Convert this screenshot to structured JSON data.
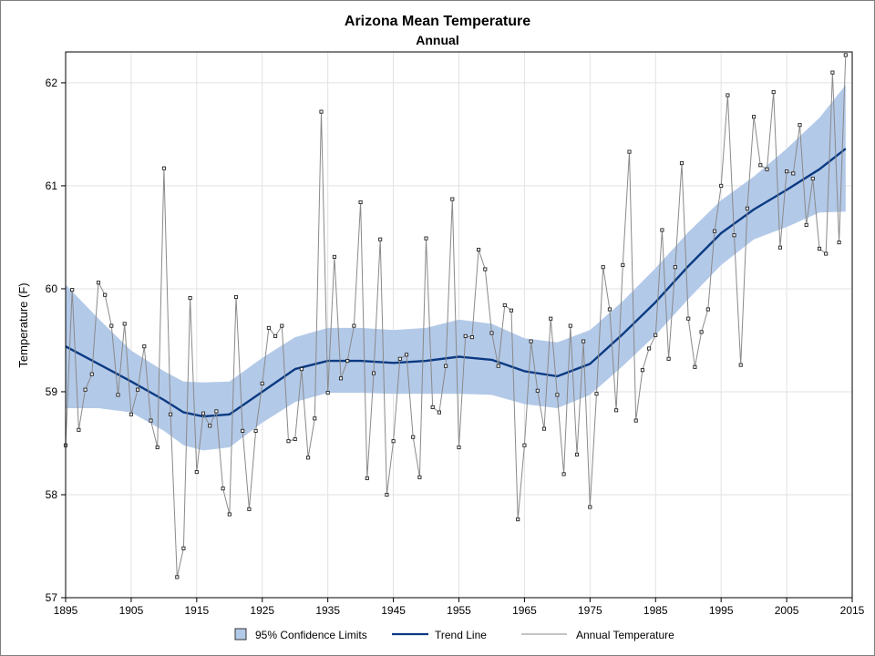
{
  "chart_data": {
    "type": "line",
    "title": "Arizona Mean Temperature",
    "subtitle": "Annual",
    "xlabel": "",
    "ylabel": "Temperature (F)",
    "xlim": [
      1895,
      2015
    ],
    "ylim": [
      57,
      62.3
    ],
    "x_ticks": [
      1895,
      1905,
      1915,
      1925,
      1935,
      1945,
      1955,
      1965,
      1975,
      1985,
      1995,
      2005,
      2015
    ],
    "y_ticks": [
      57,
      58,
      59,
      60,
      61,
      62
    ],
    "grid": true,
    "legend": {
      "position": "bottom",
      "entries": [
        "95% Confidence Limits",
        "Trend Line",
        "Annual Temperature"
      ]
    },
    "colors": {
      "band": "#b3c9e8",
      "trend": "#0b3a82",
      "annual": "#8a8a8a",
      "marker": "#222222",
      "grid": "#e2e2e2"
    },
    "annual_temperature": {
      "x": [
        1895,
        1896,
        1897,
        1898,
        1899,
        1900,
        1901,
        1902,
        1903,
        1904,
        1905,
        1906,
        1907,
        1908,
        1909,
        1910,
        1911,
        1912,
        1913,
        1914,
        1915,
        1916,
        1917,
        1918,
        1919,
        1920,
        1921,
        1922,
        1923,
        1924,
        1925,
        1926,
        1927,
        1928,
        1929,
        1930,
        1931,
        1932,
        1933,
        1934,
        1935,
        1936,
        1937,
        1938,
        1939,
        1940,
        1941,
        1942,
        1943,
        1944,
        1945,
        1946,
        1947,
        1948,
        1949,
        1950,
        1951,
        1952,
        1953,
        1954,
        1955,
        1956,
        1957,
        1958,
        1959,
        1960,
        1961,
        1962,
        1963,
        1964,
        1965,
        1966,
        1967,
        1968,
        1969,
        1970,
        1971,
        1972,
        1973,
        1974,
        1975,
        1976,
        1977,
        1978,
        1979,
        1980,
        1981,
        1982,
        1983,
        1984,
        1985,
        1986,
        1987,
        1988,
        1989,
        1990,
        1991,
        1992,
        1993,
        1994,
        1995,
        1996,
        1997,
        1998,
        1999,
        2000,
        2001,
        2002,
        2003,
        2004,
        2005,
        2006,
        2007,
        2008,
        2009,
        2010,
        2011,
        2012,
        2013,
        2014
      ],
      "y": [
        58.48,
        59.99,
        58.63,
        59.02,
        59.17,
        60.06,
        59.94,
        59.64,
        58.97,
        59.66,
        58.78,
        59.02,
        59.44,
        58.72,
        58.46,
        61.17,
        58.78,
        57.2,
        57.48,
        59.91,
        58.22,
        58.79,
        58.67,
        58.81,
        58.06,
        57.81,
        59.92,
        58.62,
        57.86,
        58.62,
        59.08,
        59.62,
        59.54,
        59.64,
        58.52,
        58.54,
        59.22,
        58.36,
        58.74,
        61.72,
        58.99,
        60.31,
        59.13,
        59.3,
        59.64,
        60.84,
        58.16,
        59.18,
        60.48,
        58.0,
        58.52,
        59.32,
        59.36,
        58.56,
        58.17,
        60.49,
        58.85,
        58.8,
        59.25,
        60.87,
        58.46,
        59.54,
        59.53,
        60.38,
        60.19,
        59.57,
        59.25,
        59.84,
        59.79,
        57.76,
        58.48,
        59.49,
        59.01,
        58.64,
        59.71,
        58.97,
        58.2,
        59.64,
        58.39,
        59.49,
        57.88,
        58.98,
        60.21,
        59.8,
        58.82,
        60.23,
        61.33,
        58.72,
        59.21,
        59.42,
        59.55,
        60.57,
        59.32,
        60.21,
        61.22,
        59.71,
        59.24,
        59.58,
        59.8,
        60.56,
        61.0,
        61.88,
        60.52,
        59.26,
        60.78,
        61.67,
        61.2,
        61.16,
        61.91,
        60.4,
        61.14,
        61.12,
        61.59,
        60.62,
        61.07,
        60.39,
        60.34,
        62.1,
        60.45,
        62.27
      ]
    },
    "trend_line": {
      "x": [
        1895,
        1900,
        1905,
        1910,
        1913,
        1916,
        1920,
        1925,
        1930,
        1935,
        1940,
        1945,
        1950,
        1955,
        1960,
        1965,
        1970,
        1975,
        1980,
        1985,
        1990,
        1995,
        2000,
        2005,
        2010,
        2014
      ],
      "y": [
        59.44,
        59.27,
        59.1,
        58.92,
        58.8,
        58.76,
        58.78,
        59.0,
        59.22,
        59.3,
        59.3,
        59.28,
        59.3,
        59.34,
        59.31,
        59.2,
        59.15,
        59.27,
        59.56,
        59.87,
        60.22,
        60.54,
        60.77,
        60.96,
        61.16,
        61.36
      ]
    },
    "confidence_band": {
      "x": [
        1895,
        1900,
        1905,
        1910,
        1913,
        1916,
        1920,
        1925,
        1930,
        1935,
        1940,
        1945,
        1950,
        1955,
        1960,
        1965,
        1970,
        1975,
        1980,
        1985,
        1990,
        1995,
        2000,
        2005,
        2010,
        2014
      ],
      "lower": [
        58.84,
        58.84,
        58.8,
        58.62,
        58.48,
        58.43,
        58.46,
        58.7,
        58.9,
        58.99,
        58.99,
        58.98,
        58.98,
        58.98,
        58.97,
        58.88,
        58.84,
        58.97,
        59.25,
        59.55,
        59.9,
        60.23,
        60.48,
        60.6,
        60.74,
        60.75
      ],
      "upper": [
        60.04,
        59.71,
        59.4,
        59.2,
        59.1,
        59.09,
        59.1,
        59.33,
        59.53,
        59.62,
        59.62,
        59.6,
        59.62,
        59.7,
        59.66,
        59.52,
        59.48,
        59.6,
        59.88,
        60.2,
        60.55,
        60.86,
        61.09,
        61.36,
        61.66,
        61.98
      ]
    }
  }
}
